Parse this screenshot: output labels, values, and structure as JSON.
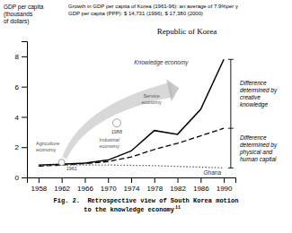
{
  "chart_data": {
    "type": "line",
    "title": "Fig. 2.  Retrospective view of South Korea motion\n        to the knowledge economy",
    "subtitle": "Growth in GDP per capita of Korea (1961-96): an average of 7.9%per y\nGDP per capita (PPP): $ 14,731 (1996), $ 17,380 (2000)",
    "ylabel": "GDP per capita\n(thousands\nof dollars)",
    "annotations": [
      "Republic of Korea",
      "Knowledge economy",
      "Ghana",
      "Difference\ndetermined by\ncreative\nknowledge",
      "Difference\ndetermined by\nphysical and\nhuman capital",
      "1961",
      "Agriculture\neconomy",
      "1988",
      "Industrial\neconomy",
      "Service\neconomy",
      "11"
    ],
    "x": [
      1958,
      1962,
      1966,
      1970,
      1974,
      1978,
      1982,
      1986,
      1990
    ],
    "series": [
      {
        "color": "#000000",
        "line_style": "solid",
        "values": [
          0.82,
          0.87,
          0.95,
          1.15,
          1.75,
          3.1,
          2.85,
          4.5,
          7.8
        ]
      },
      {
        "color": "#000000",
        "line_style": "dashed",
        "values": [
          0.75,
          0.82,
          0.92,
          1.05,
          1.35,
          1.85,
          2.25,
          2.75,
          3.25
        ]
      },
      {
        "color": "#666666",
        "line_style": "dotted",
        "values": [
          0.8,
          0.83,
          0.83,
          0.82,
          0.8,
          0.78,
          0.73,
          0.68,
          0.63
        ]
      }
    ],
    "xlim": [
      1956,
      1992
    ],
    "xticks": [
      1958,
      1962,
      1966,
      1970,
      1974,
      1978,
      1982,
      1986,
      1990
    ],
    "ylim": [
      0,
      9
    ],
    "yticks": [
      0,
      2,
      4,
      6,
      8
    ],
    "grid": false
  }
}
